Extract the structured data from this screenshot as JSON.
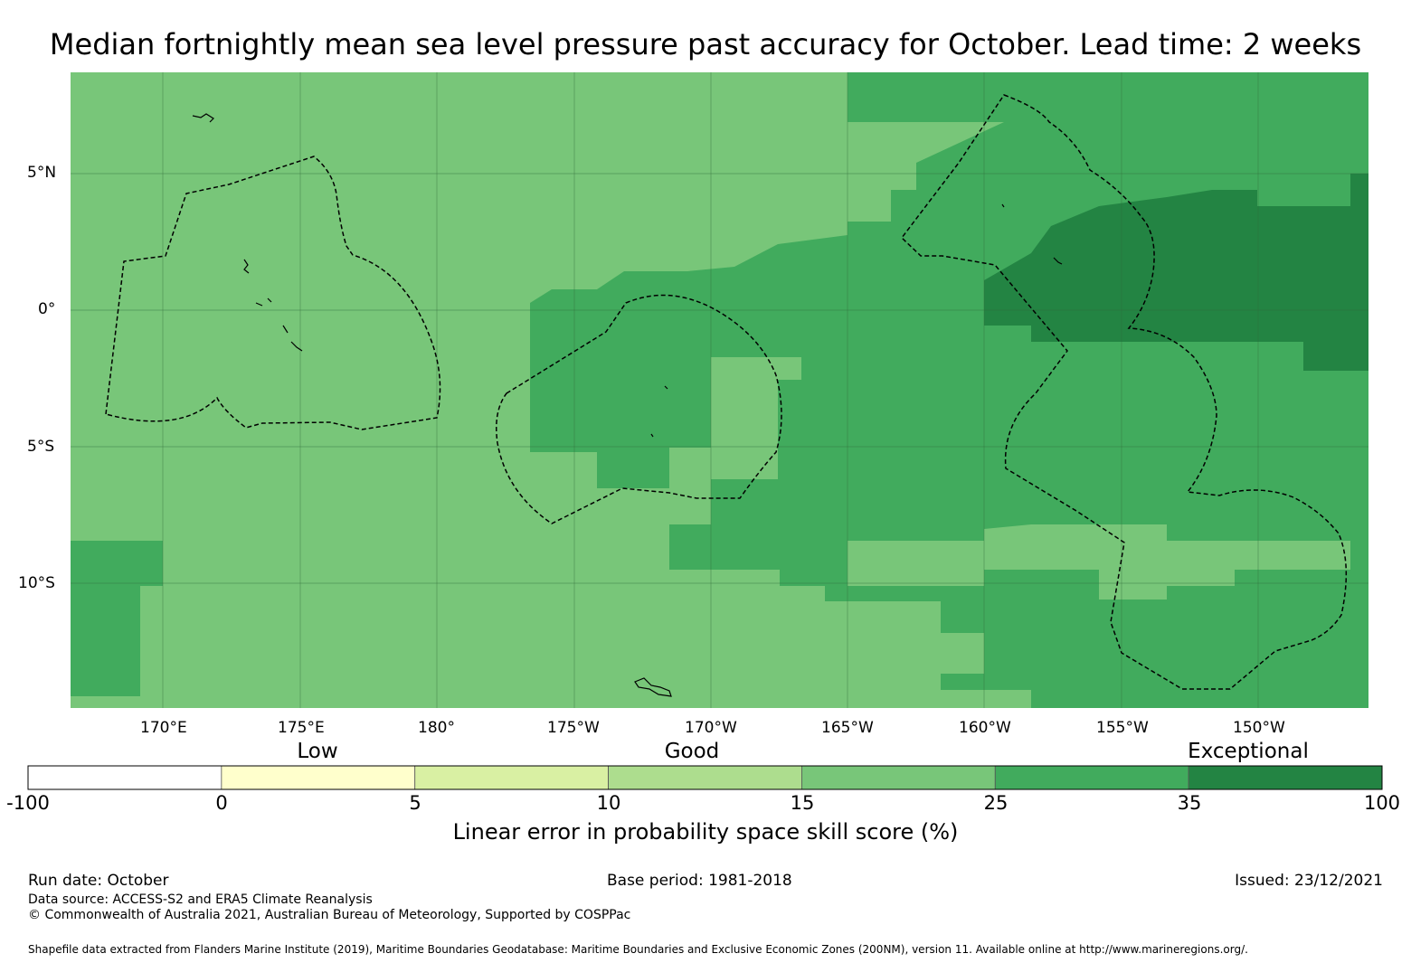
{
  "title": "Median fortnightly mean sea level pressure past accuracy for October. Lead time: 2 weeks",
  "map": {
    "lat_labels": [
      "5°N",
      "0°",
      "5°S",
      "10°S"
    ],
    "lon_labels": [
      "170°E",
      "175°E",
      "180°",
      "175°W",
      "170°W",
      "165°W",
      "160°W",
      "155°W",
      "150°W"
    ]
  },
  "categories": [
    "Low",
    "Good",
    "Exceptional"
  ],
  "colorbar": {
    "bounds": [
      "-100",
      "0",
      "5",
      "10",
      "15",
      "25",
      "35",
      "100"
    ],
    "colors": [
      "#ffffff",
      "#ffffcc",
      "#d9f0a3",
      "#addd8e",
      "#78c679",
      "#41ab5d",
      "#238443"
    ],
    "title": "Linear error in probability space skill score (%)"
  },
  "footer": {
    "run_date": "Run date: October",
    "base_period": "Base period: 1981-2018",
    "issued": "Issued: 23/12/2021",
    "data_source": "Data source: ACCESS-S2 and ERA5 Climate Reanalysis",
    "copyright": "© Commonwealth of Australia 2021, Australian Bureau of Meteorology, Supported by COSPPac",
    "shapefile": "Shapefile data extracted from Flanders Marine Institute (2019), Maritime Boundaries Geodatabase: Maritime Boundaries and Exclusive Economic Zones (200NM), version 11. Available online at http://www.marineregions.org/."
  }
}
